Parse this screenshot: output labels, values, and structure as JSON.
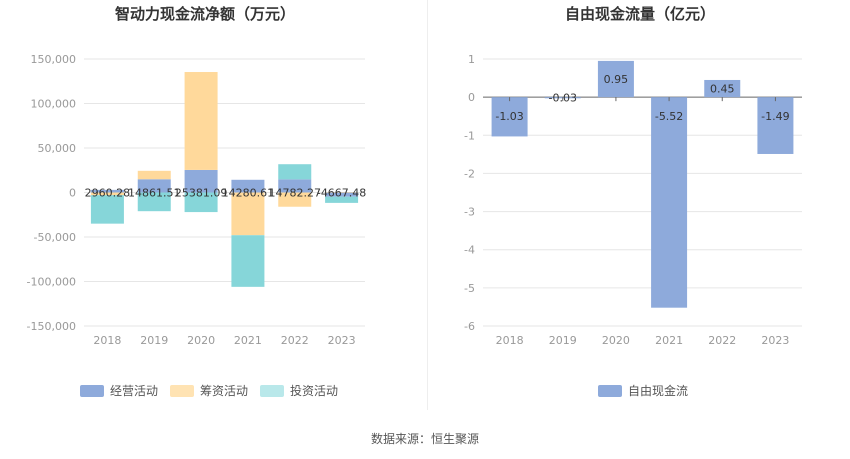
{
  "source": "数据来源：恒生聚源",
  "chart_data": [
    {
      "type": "bar",
      "stacked": true,
      "title": "智动力现金流净额（万元）",
      "categories": [
        "2018",
        "2019",
        "2020",
        "2021",
        "2022",
        "2023"
      ],
      "ylim": [
        -150000,
        150000
      ],
      "yticks": [
        150000,
        100000,
        50000,
        0,
        -50000,
        -100000,
        -150000
      ],
      "ytick_labels": [
        "150,000",
        "100,000",
        "50,000",
        "0",
        "-50,000",
        "-100,000",
        "-150,000"
      ],
      "series": [
        {
          "name": "经营活动",
          "color": "#8eaadb",
          "values": [
            2960.28,
            14861.51,
            25381.09,
            14280.61,
            14782.27,
            -4667.48
          ]
        },
        {
          "name": "筹资活动",
          "color": "#ffd99b",
          "values": [
            -3000,
            9500,
            110000,
            -48000,
            -16000,
            500
          ]
        },
        {
          "name": "投资活动",
          "color": "#86d6d9",
          "values": [
            -32000,
            -21000,
            -22000,
            -58000,
            17000,
            -7000
          ]
        }
      ],
      "data_labels": [
        "2960.28",
        "14861.51",
        "25381.09",
        "14280.61",
        "14782.27",
        "-4667.48"
      ]
    },
    {
      "type": "bar",
      "title": "自由现金流量（亿元）",
      "categories": [
        "2018",
        "2019",
        "2020",
        "2021",
        "2022",
        "2023"
      ],
      "ylim": [
        -6,
        1
      ],
      "yticks": [
        1,
        0,
        -1,
        -2,
        -3,
        -4,
        -5,
        -6
      ],
      "ytick_labels": [
        "1",
        "0",
        "-1",
        "-2",
        "-3",
        "-4",
        "-5",
        "-6"
      ],
      "series": [
        {
          "name": "自由现金流",
          "color": "#8eaadb",
          "values": [
            -1.03,
            -0.03,
            0.95,
            -5.52,
            0.45,
            -1.49
          ]
        }
      ],
      "data_labels": [
        "-1.03",
        "-0.03",
        "0.95",
        "-5.52",
        "0.45",
        "-1.49"
      ]
    }
  ]
}
